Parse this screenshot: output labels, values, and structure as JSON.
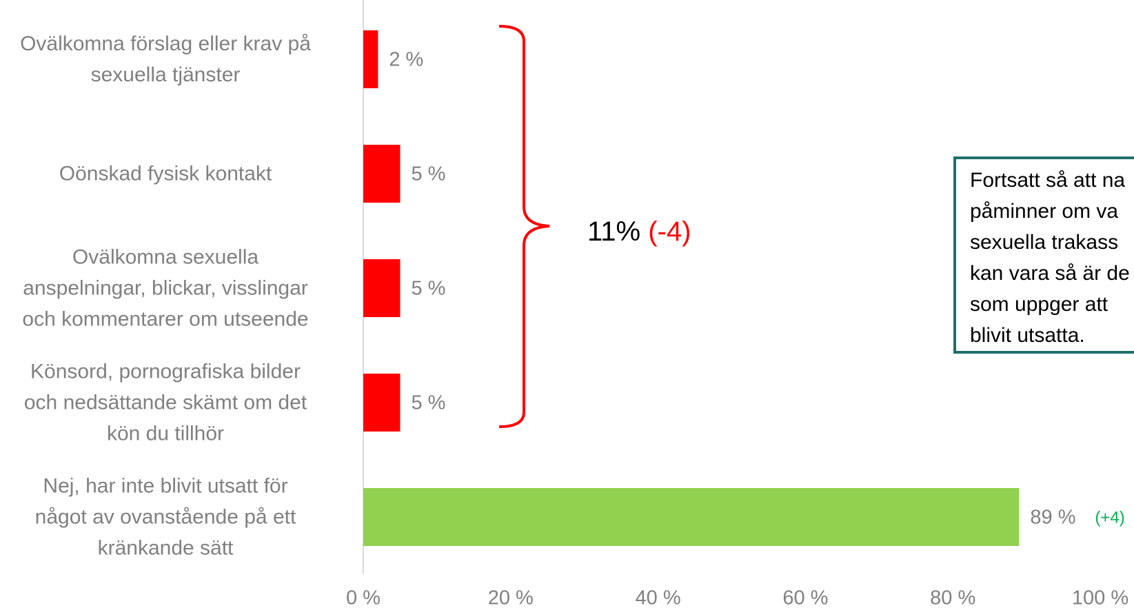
{
  "chart_data": {
    "type": "barh",
    "categories": [
      "Ovälkomna förslag eller krav på\nsexuella tjänster",
      "Oönskad fysisk kontakt",
      "Ovälkomna sexuella\nanspelningar, blickar, visslingar\noch kommentarer om utseende",
      "Könsord, pornografiska bilder\noch nedsättande skämt om det\nkön du tillhör",
      "Nej, har inte blivit utsatt för\nnågot av ovanstående på ett\nkränkande sätt"
    ],
    "values": [
      2,
      5,
      5,
      5,
      89
    ],
    "value_labels": [
      "2 %",
      "5 %",
      "5 %",
      "5 %",
      "89 %"
    ],
    "colors": [
      "#ff0000",
      "#ff0000",
      "#ff0000",
      "#ff0000",
      "#92d050"
    ],
    "xlim": [
      0,
      100
    ],
    "xticks": [
      {
        "value": 0,
        "label": "0 %"
      },
      {
        "value": 20,
        "label": "20 %"
      },
      {
        "value": 40,
        "label": "40 %"
      },
      {
        "value": 60,
        "label": "60 %"
      },
      {
        "value": 80,
        "label": "80 %"
      },
      {
        "value": 100,
        "label": "100 %"
      }
    ],
    "annotations": {
      "group_total": "11%",
      "group_change": "(-4)",
      "no_change": "(+4)",
      "note": [
        "Fortsatt så att na",
        "påminner om va",
        "sexuella trakass",
        "kan vara så är de",
        "som uppger att",
        "blivit utsatta."
      ]
    }
  }
}
